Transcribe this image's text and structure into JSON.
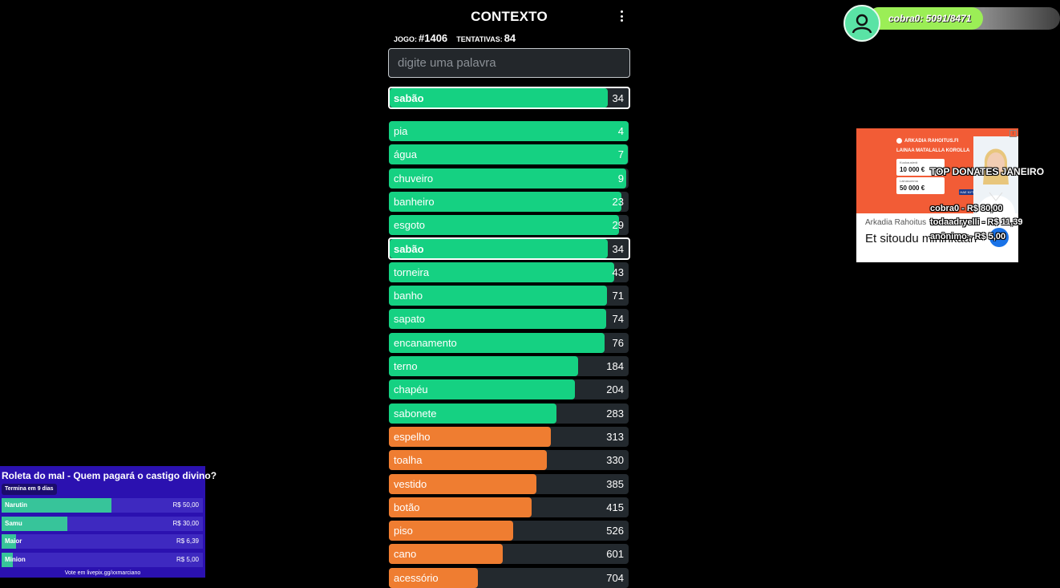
{
  "game": {
    "title": "CONTEXTO",
    "game_label": "JOGO:",
    "game_number": "#1406",
    "attempts_label": "TENTATIVAS:",
    "attempts": "84",
    "search_placeholder": "digite uma palavra",
    "last_guess": {
      "word": "sabão",
      "rank": "34",
      "fill": 0.95
    },
    "guesses": [
      {
        "word": "pia",
        "rank": "4",
        "color": "green",
        "fill": 1.0
      },
      {
        "word": "água",
        "rank": "7",
        "color": "green",
        "fill": 0.995
      },
      {
        "word": "chuveiro",
        "rank": "9",
        "color": "green",
        "fill": 0.99
      },
      {
        "word": "banheiro",
        "rank": "23",
        "color": "green",
        "fill": 0.97
      },
      {
        "word": "esgoto",
        "rank": "29",
        "color": "green",
        "fill": 0.96
      },
      {
        "word": "sabão",
        "rank": "34",
        "color": "green",
        "fill": 0.95,
        "highlight": true
      },
      {
        "word": "torneira",
        "rank": "43",
        "color": "green",
        "fill": 0.94
      },
      {
        "word": "banho",
        "rank": "71",
        "color": "green",
        "fill": 0.91
      },
      {
        "word": "sapato",
        "rank": "74",
        "color": "green",
        "fill": 0.905
      },
      {
        "word": "encanamento",
        "rank": "76",
        "color": "green",
        "fill": 0.9
      },
      {
        "word": "terno",
        "rank": "184",
        "color": "green",
        "fill": 0.79
      },
      {
        "word": "chapéu",
        "rank": "204",
        "color": "green",
        "fill": 0.775
      },
      {
        "word": "sabonete",
        "rank": "283",
        "color": "green",
        "fill": 0.7
      },
      {
        "word": "espelho",
        "rank": "313",
        "color": "orange",
        "fill": 0.675
      },
      {
        "word": "toalha",
        "rank": "330",
        "color": "orange",
        "fill": 0.66
      },
      {
        "word": "vestido",
        "rank": "385",
        "color": "orange",
        "fill": 0.615
      },
      {
        "word": "botão",
        "rank": "415",
        "color": "orange",
        "fill": 0.595
      },
      {
        "word": "piso",
        "rank": "526",
        "color": "orange",
        "fill": 0.52
      },
      {
        "word": "cano",
        "rank": "601",
        "color": "orange",
        "fill": 0.475
      },
      {
        "word": "acessório",
        "rank": "704",
        "color": "orange",
        "fill": 0.37
      }
    ]
  },
  "user_badge": {
    "text": "cobra0: 5091/8471",
    "progress": 0.601
  },
  "ad": {
    "logo": "ARKADIA RAHOITUS.FI",
    "headline": "LAINAA MATALALLA KOROLLA",
    "card1_label": "Kuukausierä",
    "card1_value": "10 000 €",
    "card2_label": "Lainasumma",
    "card2_value": "50 000 €",
    "button": "HAE NYT",
    "brand": "Arkadia Rahoitus",
    "body": "Et sitoudu mihinkään"
  },
  "donates": {
    "title": "TOP DONATES JANEIRO",
    "entries": [
      "cobra0 - R$ 80,00",
      "todaadryelli - R$ 11,39",
      "anônimo - R$ 5,00"
    ]
  },
  "wheel": {
    "title": "Roleta do mal - Quem pagará o castigo divino?",
    "subtitle": "Termina em 9 dias",
    "footer": "Vote em livepix.gg/xxmarciano",
    "options": [
      {
        "name": "Narutin",
        "value": "R$ 50,00",
        "share": 0.546
      },
      {
        "name": "Samu",
        "value": "R$ 30,00",
        "share": 0.328
      },
      {
        "name": "Maior",
        "value": "R$ 6,39",
        "share": 0.07
      },
      {
        "name": "Minion",
        "value": "R$ 5,00",
        "share": 0.055
      }
    ]
  },
  "colors": {
    "green": "#15d182",
    "orange": "#ef7d31",
    "row_bg": "#23292e",
    "wheel_bg": "#2b11b0"
  }
}
